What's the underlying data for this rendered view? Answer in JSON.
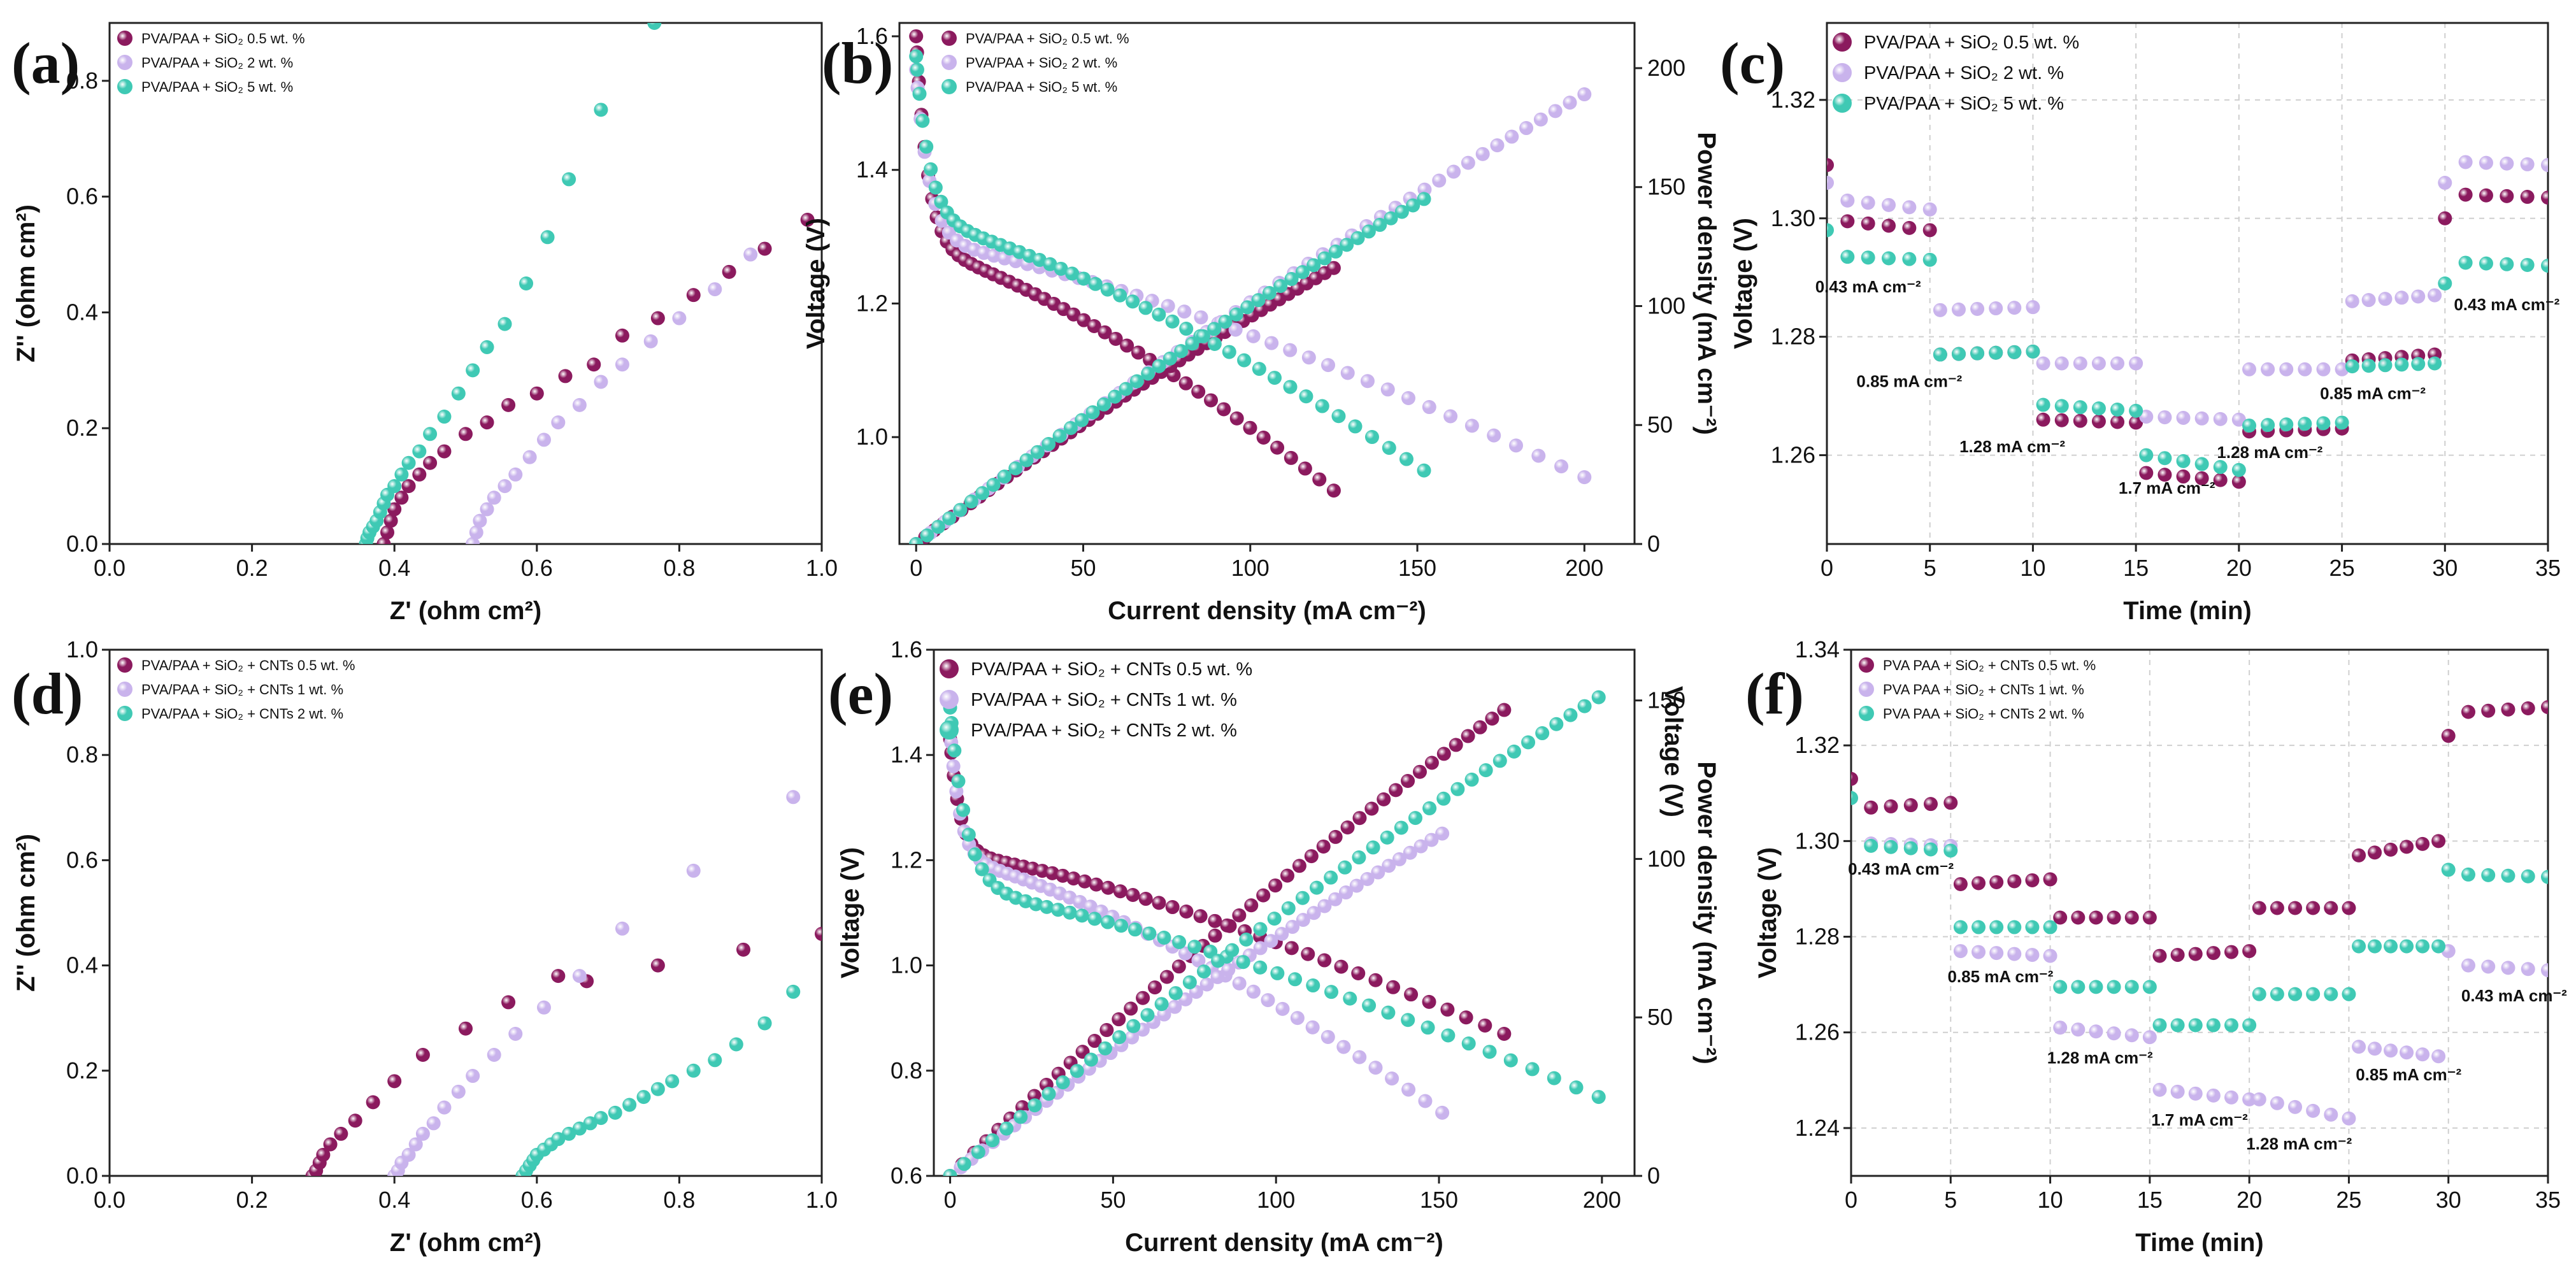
{
  "colors": {
    "s1": "#8b1a5e",
    "s2": "#c9b3ec",
    "s3": "#3fc9b4"
  },
  "chart_data": [
    {
      "id": "a",
      "letter": "(a)",
      "type": "scatter",
      "xlabel": "Z' (ohm cm²)",
      "ylabel": "Z'' (ohm cm²)",
      "xlim": [
        0,
        1
      ],
      "ylim": [
        0,
        0.9
      ],
      "ylim_axis": [
        0,
        0.9
      ],
      "xticks": [
        "0.0",
        "0.2",
        "0.4",
        "0.6",
        "0.8",
        "1.0"
      ],
      "yticks": [
        "0.0",
        "0.2",
        "0.4",
        "0.6",
        "0.8"
      ],
      "legend": [
        "PVA/PAA + SiO₂ 0.5 wt. %",
        "PVA/PAA + SiO₂ 2 wt. %",
        "PVA/PAA + SiO₂ 5 wt. %"
      ],
      "series": [
        {
          "name": "PVA/PAA + SiO₂ 0.5 wt. %",
          "x": [
            0.385,
            0.39,
            0.395,
            0.4,
            0.41,
            0.42,
            0.435,
            0.45,
            0.47,
            0.5,
            0.53,
            0.56,
            0.6,
            0.64,
            0.68,
            0.72,
            0.77,
            0.82,
            0.87,
            0.92,
            0.98
          ],
          "y": [
            0.0,
            0.02,
            0.04,
            0.06,
            0.08,
            0.1,
            0.12,
            0.14,
            0.16,
            0.19,
            0.21,
            0.24,
            0.26,
            0.29,
            0.31,
            0.36,
            0.39,
            0.43,
            0.47,
            0.51,
            0.56
          ]
        },
        {
          "name": "PVA/PAA + SiO₂ 2 wt. %",
          "x": [
            0.51,
            0.515,
            0.52,
            0.53,
            0.54,
            0.555,
            0.57,
            0.59,
            0.61,
            0.63,
            0.66,
            0.69,
            0.72,
            0.76,
            0.8,
            0.85,
            0.9
          ],
          "y": [
            0.0,
            0.02,
            0.04,
            0.06,
            0.08,
            0.1,
            0.12,
            0.15,
            0.18,
            0.21,
            0.24,
            0.28,
            0.31,
            0.35,
            0.39,
            0.44,
            0.5
          ]
        },
        {
          "name": "PVA/PAA + SiO₂ 5 wt. %",
          "x": [
            0.36,
            0.362,
            0.365,
            0.37,
            0.375,
            0.38,
            0.385,
            0.39,
            0.4,
            0.41,
            0.42,
            0.435,
            0.45,
            0.47,
            0.49,
            0.51,
            0.53,
            0.555,
            0.585,
            0.615,
            0.645,
            0.69,
            0.765
          ],
          "y": [
            0.0,
            0.01,
            0.02,
            0.03,
            0.04,
            0.055,
            0.07,
            0.085,
            0.1,
            0.12,
            0.14,
            0.16,
            0.19,
            0.22,
            0.26,
            0.3,
            0.34,
            0.38,
            0.45,
            0.53,
            0.63,
            0.75,
            0.9
          ]
        }
      ]
    },
    {
      "id": "b",
      "letter": "(b)",
      "type": "line",
      "xlabel": "Current density (mA cm⁻²)",
      "ylabel": "Voltage (V)",
      "y2label": "Power density (mA cm⁻²)",
      "xlim": [
        -5,
        215
      ],
      "ylim": [
        0.84,
        1.62
      ],
      "y2lim": [
        0,
        219
      ],
      "xticks": [
        "0",
        "50",
        "100",
        "150",
        "200"
      ],
      "xtickvals": [
        0,
        50,
        100,
        150,
        200
      ],
      "yticks": [
        "1.0",
        "1.2",
        "1.4",
        "1.6"
      ],
      "ytickvals": [
        1.0,
        1.2,
        1.4,
        1.6
      ],
      "y2ticks": [
        "0",
        "50",
        "100",
        "150",
        "200"
      ],
      "y2tickvals": [
        0,
        50,
        100,
        150,
        200
      ],
      "legend": [
        "PVA/PAA + SiO₂ 0.5 wt. %",
        "PVA/PAA + SiO₂ 2 wt. %",
        "PVA/PAA + SiO₂ 5 wt. %"
      ],
      "series": [
        {
          "name": "PVA/PAA + SiO₂ 0.5 wt. %",
          "xmax": 125,
          "v0": 1.6,
          "vk": 0.32,
          "vs": 3.5,
          "vend": 0.92,
          "pmax": 116
        },
        {
          "name": "PVA/PAA + SiO₂ 2 wt. %",
          "xmax": 200,
          "v0": 1.55,
          "vk": 0.26,
          "vs": 4.0,
          "vend": 0.94,
          "pmax": 189
        },
        {
          "name": "PVA/PAA + SiO₂ 5 wt. %",
          "xmax": 152,
          "v0": 1.57,
          "vk": 0.25,
          "vs": 4.0,
          "vend": 0.95,
          "pmax": 145
        }
      ]
    },
    {
      "id": "c",
      "letter": "(c)",
      "type": "step",
      "xlabel": "Time (min)",
      "ylabel": "Voltage (V)",
      "xlim": [
        0,
        35
      ],
      "ylim": [
        1.245,
        1.333
      ],
      "xticks": [
        "0",
        "5",
        "10",
        "15",
        "20",
        "25",
        "30",
        "35"
      ],
      "xtickvals": [
        0,
        5,
        10,
        15,
        20,
        25,
        30,
        35
      ],
      "yticks": [
        "1.26",
        "1.28",
        "1.30",
        "1.32"
      ],
      "ytickvals": [
        1.26,
        1.28,
        1.3,
        1.32
      ],
      "legend": [
        "PVA/PAA + SiO₂ 0.5 wt. %",
        "PVA/PAA + SiO₂ 2 wt. %",
        "PVA/PAA + SiO₂ 5 wt. %"
      ],
      "series": [
        {
          "name": "PVA/PAA + SiO₂ 0.5 wt. %",
          "steps": [
            [
              1.309,
              1.2995,
              1.298
            ],
            [
              1.277,
              1.2775
            ],
            [
              1.266,
              1.2655
            ],
            [
              1.257,
              1.2555
            ],
            [
              1.264,
              1.2645
            ],
            [
              1.276,
              1.277
            ],
            [
              1.3,
              1.304,
              1.3035
            ]
          ]
        },
        {
          "name": "PVA/PAA + SiO₂ 2 wt. %",
          "steps": [
            [
              1.306,
              1.303,
              1.3015
            ],
            [
              1.2845,
              1.285
            ],
            [
              1.2755,
              1.2755
            ],
            [
              1.2665,
              1.266
            ],
            [
              1.2745,
              1.2745
            ],
            [
              1.286,
              1.287
            ],
            [
              1.306,
              1.3095,
              1.309
            ]
          ]
        },
        {
          "name": "PVA/PAA + SiO₂ 5 wt. %",
          "steps": [
            [
              1.298,
              1.2935,
              1.293
            ],
            [
              1.277,
              1.2775
            ],
            [
              1.2685,
              1.2675
            ],
            [
              1.26,
              1.2575
            ],
            [
              1.265,
              1.2655
            ],
            [
              1.275,
              1.2755
            ],
            [
              1.289,
              1.2925,
              1.292
            ]
          ]
        }
      ],
      "annotations": [
        "0.43 mA cm⁻²",
        "0.85 mA cm⁻²",
        "1.28 mA cm⁻²",
        "1.7 mA cm⁻²",
        "1.28 mA cm⁻²",
        "0.85 mA cm⁻²",
        "0.43 mA cm⁻²"
      ],
      "ann_positions": [
        [
          2,
          1.2875
        ],
        [
          4,
          1.2715
        ],
        [
          9,
          1.2605
        ],
        [
          16.5,
          1.2535
        ],
        [
          21.5,
          1.2595
        ],
        [
          26.5,
          1.2695
        ],
        [
          33,
          1.2845
        ]
      ]
    },
    {
      "id": "d",
      "letter": "(d)",
      "type": "scatter",
      "xlabel": "Z' (ohm cm²)",
      "ylabel": "Z'' (ohm cm²)",
      "xlim": [
        0,
        1
      ],
      "ylim": [
        0,
        1.0
      ],
      "xticks": [
        "0.0",
        "0.2",
        "0.4",
        "0.6",
        "0.8",
        "1.0"
      ],
      "yticks": [
        "0.0",
        "0.2",
        "0.4",
        "0.6",
        "0.8",
        "1.0"
      ],
      "legend": [
        "PVA/PAA + SiO₂ + CNTs 0.5 wt. %",
        "PVA/PAA + SiO₂ + CNTs 1 wt. %",
        "PVA/PAA + SiO₂ + CNTs 2 wt. %"
      ],
      "series": [
        {
          "name": "PVA/PAA + SiO₂ + CNTs 0.5 wt. %",
          "x": [
            0.285,
            0.29,
            0.295,
            0.3,
            0.31,
            0.325,
            0.345,
            0.37,
            0.4,
            0.44,
            0.5,
            0.56,
            0.63,
            0.67,
            0.77,
            0.89,
            1.0
          ],
          "y": [
            0.0,
            0.01,
            0.025,
            0.04,
            0.06,
            0.08,
            0.105,
            0.14,
            0.18,
            0.23,
            0.28,
            0.33,
            0.38,
            0.37,
            0.4,
            0.43,
            0.46
          ]
        },
        {
          "name": "PVA/PAA + SiO₂ + CNTs 1 wt. %",
          "x": [
            0.4,
            0.405,
            0.41,
            0.42,
            0.43,
            0.44,
            0.455,
            0.47,
            0.49,
            0.51,
            0.54,
            0.57,
            0.61,
            0.66,
            0.72,
            0.82,
            0.96
          ],
          "y": [
            0.0,
            0.01,
            0.025,
            0.04,
            0.06,
            0.08,
            0.1,
            0.13,
            0.16,
            0.19,
            0.23,
            0.27,
            0.32,
            0.38,
            0.47,
            0.58,
            0.72
          ]
        },
        {
          "name": "PVA/PAA + SiO₂ + CNTs 2 wt. %",
          "x": [
            0.58,
            0.585,
            0.59,
            0.595,
            0.6,
            0.61,
            0.62,
            0.63,
            0.645,
            0.66,
            0.675,
            0.69,
            0.71,
            0.73,
            0.75,
            0.77,
            0.79,
            0.82,
            0.85,
            0.88,
            0.92,
            0.96
          ],
          "y": [
            0.0,
            0.01,
            0.02,
            0.03,
            0.04,
            0.05,
            0.06,
            0.07,
            0.08,
            0.09,
            0.1,
            0.11,
            0.12,
            0.135,
            0.15,
            0.165,
            0.18,
            0.2,
            0.22,
            0.25,
            0.29,
            0.35
          ]
        }
      ]
    },
    {
      "id": "e",
      "letter": "(e)",
      "type": "line",
      "xlabel": "Current density (mA cm⁻²)",
      "ylabel": "Voltage (V)",
      "y2label": "Power density (mA cm⁻²)",
      "xlim": [
        -5,
        210
      ],
      "ylim": [
        0.6,
        1.6
      ],
      "y2lim": [
        0,
        166
      ],
      "xticks": [
        "0",
        "50",
        "100",
        "150",
        "200"
      ],
      "xtickvals": [
        0,
        50,
        100,
        150,
        200
      ],
      "yticks": [
        "0.6",
        "0.8",
        "1.0",
        "1.2",
        "1.4",
        "1.6"
      ],
      "ytickvals": [
        0.6,
        0.8,
        1.0,
        1.2,
        1.4,
        1.6
      ],
      "y2ticks": [
        "0",
        "50",
        "100",
        "150"
      ],
      "y2tickvals": [
        0,
        50,
        100,
        150
      ],
      "legend": [
        "PVA/PAA + SiO₂ + CNTs 0.5 wt. %",
        "PVA/PAA + SiO₂ + CNTs 1 wt. %",
        "PVA/PAA + SiO₂ + CNTs 2 wt. %"
      ],
      "series": [
        {
          "name": "PVA/PAA + SiO₂ + CNTs 0.5 wt. %",
          "xmax": 170,
          "v0": 1.43,
          "vk": 0.22,
          "vs": 3.0,
          "vend": 0.87,
          "pmax": 147
        },
        {
          "name": "PVA/PAA + SiO₂ + CNTs 1 wt. %",
          "xmax": 151,
          "v0": 1.45,
          "vk": 0.25,
          "vs": 3.0,
          "vend": 0.72,
          "pmax": 108
        },
        {
          "name": "PVA/PAA + SiO₂ + CNTs 2 wt. %",
          "xmax": 199,
          "v0": 1.49,
          "vk": 0.35,
          "vs": 5.0,
          "vend": 0.75,
          "pmax": 151
        }
      ]
    },
    {
      "id": "f",
      "letter": "(f)",
      "type": "step",
      "xlabel": "Time (min)",
      "ylabel": "Voltage (V)",
      "xlim": [
        0,
        35
      ],
      "ylim": [
        1.23,
        1.34
      ],
      "xticks": [
        "0",
        "5",
        "10",
        "15",
        "20",
        "25",
        "30",
        "35"
      ],
      "xtickvals": [
        0,
        5,
        10,
        15,
        20,
        25,
        30,
        35
      ],
      "yticks": [
        "1.24",
        "1.26",
        "1.28",
        "1.30",
        "1.32",
        "1.34"
      ],
      "ytickvals": [
        1.24,
        1.26,
        1.28,
        1.3,
        1.32,
        1.34
      ],
      "legend": [
        "PVA PAA + SiO₂ + CNTs 0.5 wt. %",
        "PVA PAA + SiO₂ + CNTs 1 wt. %",
        "PVA PAA + SiO₂ + CNTs 2 wt. %"
      ],
      "series": [
        {
          "name": "PVA PAA + SiO₂ + CNTs 0.5 wt. %",
          "steps": [
            [
              1.313,
              1.307,
              1.308
            ],
            [
              1.291,
              1.292
            ],
            [
              1.284,
              1.284
            ],
            [
              1.276,
              1.277
            ],
            [
              1.286,
              1.286
            ],
            [
              1.297,
              1.3
            ],
            [
              1.322,
              1.327,
              1.328
            ]
          ]
        },
        {
          "name": "PVA PAA + SiO₂ + CNTs 1 wt. %",
          "steps": [
            [
              1.309,
              1.2995,
              1.299
            ],
            [
              1.277,
              1.276
            ],
            [
              1.261,
              1.259
            ],
            [
              1.248,
              1.246
            ],
            [
              1.246,
              1.242
            ],
            [
              1.257,
              1.255
            ],
            [
              1.277,
              1.274,
              1.273
            ]
          ]
        },
        {
          "name": "PVA PAA + SiO₂ + CNTs 2 wt. %",
          "steps": [
            [
              1.309,
              1.299,
              1.298
            ],
            [
              1.282,
              1.282
            ],
            [
              1.2695,
              1.2695
            ],
            [
              1.2615,
              1.2615
            ],
            [
              1.268,
              1.268
            ],
            [
              1.278,
              1.278
            ],
            [
              1.294,
              1.293,
              1.2925
            ]
          ]
        }
      ],
      "annotations": [
        "0.43 mA cm⁻²",
        "0.85 mA cm⁻²",
        "1.28 mA cm⁻²",
        "1.7 mA cm⁻²",
        "1.28 mA cm⁻²",
        "0.85 mA cm⁻²",
        "0.43 mA cm⁻²"
      ],
      "ann_positions": [
        [
          2.5,
          1.293
        ],
        [
          7.5,
          1.2705
        ],
        [
          12.5,
          1.2535
        ],
        [
          17.5,
          1.2405
        ],
        [
          22.5,
          1.2355
        ],
        [
          28,
          1.25
        ],
        [
          33.3,
          1.2665
        ]
      ]
    }
  ]
}
